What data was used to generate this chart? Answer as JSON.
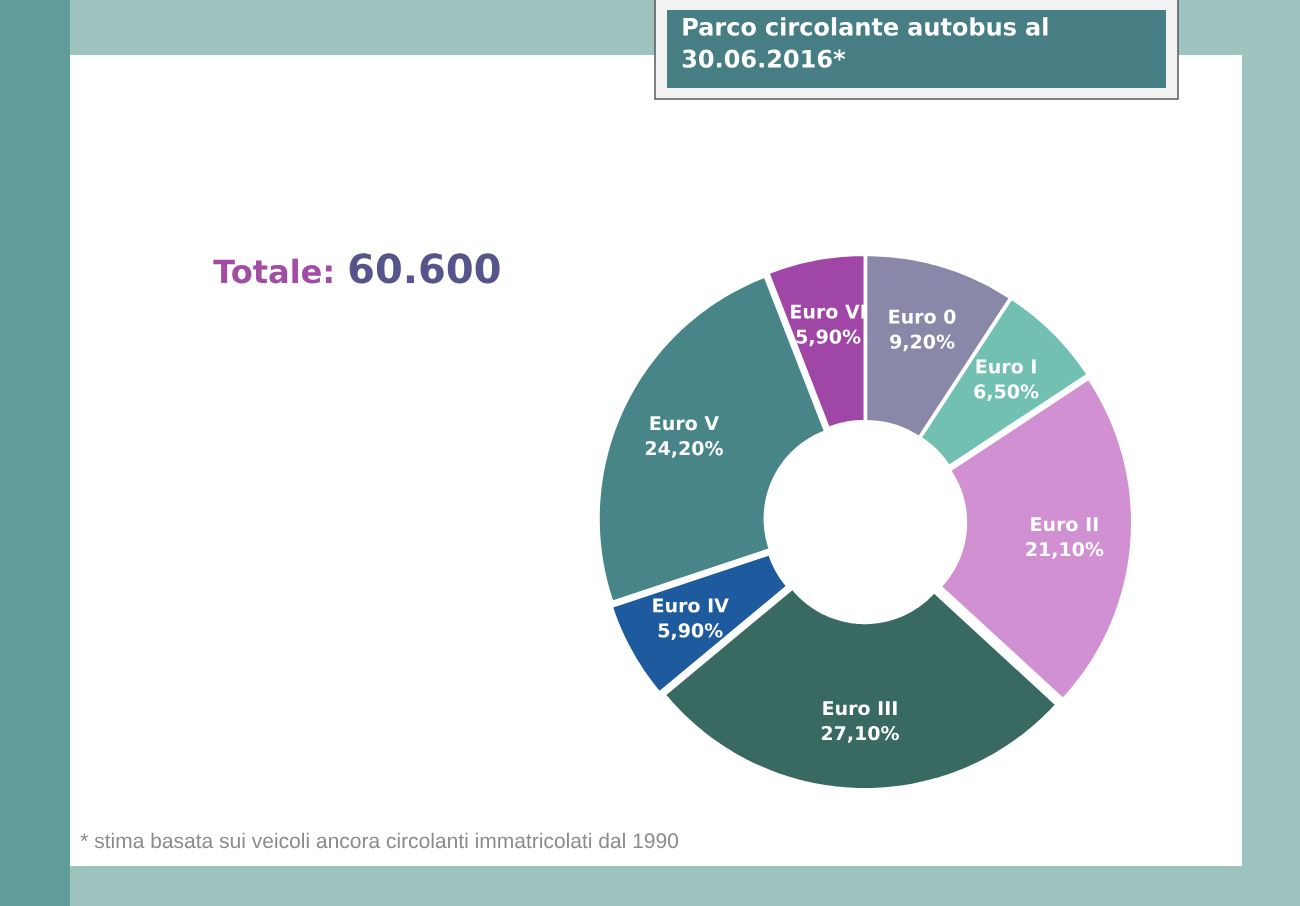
{
  "chart_data": {
    "type": "donut",
    "title": "Parco circolante autobus al 30.06.2016*",
    "categories": [
      "Euro 0",
      "Euro I",
      "Euro II",
      "Euro III",
      "Euro IV",
      "Euro V",
      "Euro VI"
    ],
    "values": [
      9.2,
      6.5,
      21.1,
      27.1,
      5.9,
      24.2,
      5.9
    ],
    "colors": [
      "#8a88a8",
      "#72c0b2",
      "#d090d2",
      "#386a62",
      "#1e5a9e",
      "#478589",
      "#a046a6"
    ],
    "value_labels": [
      "9,20%",
      "6,50%",
      "21,10%",
      "27,10%",
      "5,90%",
      "24,20%",
      "5,90%"
    ],
    "annotations": [
      "Totale:",
      "60.600",
      "* stima basata sui veicoli ancora circolanti immatricolati dal 1990"
    ]
  }
}
